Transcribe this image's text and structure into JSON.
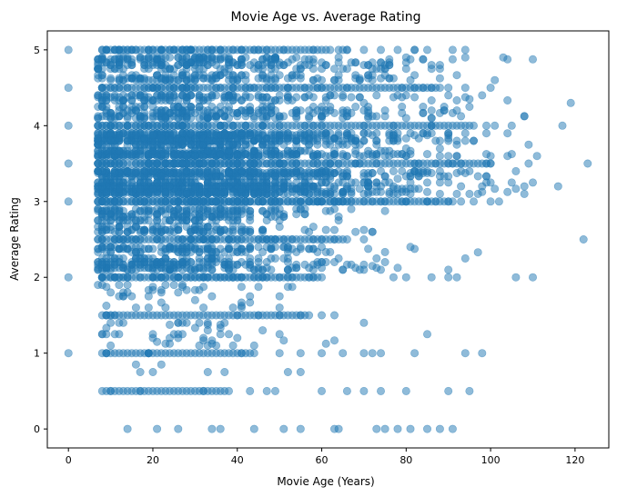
{
  "chart_data": {
    "type": "scatter",
    "title": "Movie Age vs. Average Rating",
    "xlabel": "Movie Age (Years)",
    "ylabel": "Average Rating",
    "xlim": [
      -5,
      128
    ],
    "ylim": [
      -0.25,
      5.25
    ],
    "xticks": [
      0,
      20,
      40,
      60,
      80,
      100,
      120
    ],
    "yticks": [
      0,
      1,
      2,
      3,
      4,
      5
    ],
    "grid": false,
    "legend": "none",
    "marker_color": "#1f77b4",
    "marker_opacity": 0.5,
    "series": [
      {
        "points": [
          [
            0,
            5
          ],
          [
            0,
            4.5
          ],
          [
            0,
            4
          ],
          [
            0,
            3.5
          ],
          [
            0,
            3
          ],
          [
            0,
            2
          ],
          [
            0,
            1
          ],
          [
            117,
            4
          ],
          [
            123,
            3.5
          ],
          [
            122,
            2.5
          ],
          [
            119,
            4.3
          ],
          [
            110,
            2
          ],
          [
            106,
            2
          ],
          [
            109,
            3.5
          ],
          [
            109,
            3.75
          ],
          [
            108,
            3.1
          ],
          [
            104,
            3.6
          ],
          [
            97,
            2.33
          ],
          [
            98,
            1
          ],
          [
            94,
            1
          ],
          [
            90,
            2
          ],
          [
            82,
            1
          ],
          [
            85,
            1.25
          ],
          [
            80,
            2
          ],
          [
            77,
            2
          ],
          [
            86,
            2
          ],
          [
            95,
            0.5
          ],
          [
            90,
            0.5
          ],
          [
            80,
            0.5
          ],
          [
            74,
            0.5
          ],
          [
            70,
            0.5
          ],
          [
            85,
            0
          ],
          [
            81,
            0
          ],
          [
            78,
            0
          ],
          [
            75,
            0
          ],
          [
            73,
            0
          ],
          [
            88,
            0
          ],
          [
            91,
            0
          ],
          [
            14,
            0
          ],
          [
            21,
            0
          ],
          [
            26,
            0
          ],
          [
            34,
            0
          ],
          [
            36,
            0
          ],
          [
            44,
            0
          ],
          [
            51,
            0
          ],
          [
            55,
            0
          ],
          [
            63,
            0
          ],
          [
            64,
            0
          ],
          [
            50,
            1
          ],
          [
            55,
            1
          ],
          [
            60,
            1
          ],
          [
            65,
            1
          ],
          [
            70,
            1
          ],
          [
            72,
            1
          ],
          [
            74,
            1
          ],
          [
            55,
            0.75
          ],
          [
            52,
            0.75
          ],
          [
            47,
            0.5
          ],
          [
            43,
            0.5
          ],
          [
            60,
            0.5
          ],
          [
            66,
            0.5
          ],
          [
            45,
            2
          ],
          [
            52,
            2
          ],
          [
            57,
            2
          ],
          [
            70,
            2.1
          ],
          [
            72,
            2.15
          ],
          [
            70,
            2.5
          ],
          [
            60,
            2.5
          ],
          [
            55,
            2.4
          ],
          [
            100,
            4.5
          ],
          [
            98,
            4.4
          ],
          [
            95,
            4.35
          ],
          [
            94,
            4.5
          ],
          [
            90,
            4.5
          ],
          [
            86,
            4.5
          ],
          [
            82,
            4.5
          ],
          [
            94,
            5
          ],
          [
            91,
            5
          ],
          [
            85,
            5
          ],
          [
            82,
            5
          ],
          [
            78,
            5
          ],
          [
            74,
            5
          ],
          [
            70,
            5
          ],
          [
            66,
            5
          ],
          [
            64,
            5
          ],
          [
            60,
            4.75
          ],
          [
            66,
            4.75
          ],
          [
            72,
            4.75
          ],
          [
            75,
            4.75
          ],
          [
            88,
            4.75
          ],
          [
            81,
            4.6
          ],
          [
            100,
            3.5
          ],
          [
            100,
            3
          ],
          [
            102,
            3
          ],
          [
            96,
            3
          ],
          [
            93,
            3
          ],
          [
            90,
            3.5
          ],
          [
            99,
            4
          ],
          [
            101,
            4
          ],
          [
            92,
            3.6
          ],
          [
            96,
            3.8
          ],
          [
            88,
            3.7
          ],
          [
            85,
            3.25
          ],
          [
            88,
            3.4
          ],
          [
            82,
            3.4
          ],
          [
            78,
            3.3
          ],
          [
            65,
            3
          ],
          [
            70,
            3
          ],
          [
            75,
            3
          ],
          [
            80,
            3
          ],
          [
            85,
            3
          ],
          [
            62,
            3.3
          ],
          [
            58,
            3.6
          ],
          [
            55,
            3.9
          ],
          [
            60,
            4.2
          ],
          [
            65,
            4.1
          ],
          [
            70,
            4.3
          ],
          [
            75,
            4.2
          ],
          [
            80,
            4.1
          ],
          [
            68,
            3.8
          ],
          [
            72,
            3.6
          ],
          [
            76,
            3.9
          ],
          [
            80,
            3.7
          ],
          [
            84,
            3.9
          ],
          [
            86,
            4
          ],
          [
            90,
            3.9
          ],
          [
            92,
            4.2
          ],
          [
            104,
            3.9
          ],
          [
            50,
            2.75
          ],
          [
            48,
            2.8
          ],
          [
            46,
            3.2
          ],
          [
            52,
            3.1
          ],
          [
            54,
            3.4
          ],
          [
            56,
            2.9
          ],
          [
            58,
            3.2
          ],
          [
            63,
            2.5
          ],
          [
            64,
            2.75
          ],
          [
            68,
            2.6
          ],
          [
            43,
            2.25
          ],
          [
            41,
            1.6
          ],
          [
            38,
            1.25
          ],
          [
            36,
            1.25
          ],
          [
            33,
            1.3
          ],
          [
            31,
            1.4
          ],
          [
            28,
            1.4
          ],
          [
            24,
            1.2
          ],
          [
            21,
            1.15
          ],
          [
            20,
            0.75
          ],
          [
            17,
            0.75
          ],
          [
            16,
            0.85
          ],
          [
            22,
            0.85
          ],
          [
            33,
            0.75
          ],
          [
            37,
            0.75
          ],
          [
            39,
            1.1
          ],
          [
            44,
            1.1
          ],
          [
            46,
            1.3
          ],
          [
            30,
            1.7
          ],
          [
            26,
            1.8
          ],
          [
            22,
            1.8
          ],
          [
            16,
            1.6
          ],
          [
            12,
            1.75
          ],
          [
            10,
            1.8
          ],
          [
            15,
            2.2
          ],
          [
            12,
            4.8
          ],
          [
            15,
            4.8
          ],
          [
            22,
            4.8
          ],
          [
            27,
            4.7
          ],
          [
            33,
            4.8
          ],
          [
            37,
            4.7
          ],
          [
            45,
            4.75
          ],
          [
            48,
            4.6
          ],
          [
            52,
            4.5
          ],
          [
            56,
            4.5
          ],
          [
            42,
            4.6
          ],
          [
            29,
            4.6
          ],
          [
            18,
            4.6
          ],
          [
            11,
            4.5
          ],
          [
            11,
            1.5
          ],
          [
            40,
            1.5
          ],
          [
            45,
            1.5
          ],
          [
            50,
            1.5
          ],
          [
            55,
            1.5
          ],
          [
            60,
            1.5
          ],
          [
            63,
            1.5
          ],
          [
            8,
            4
          ],
          [
            8,
            3.5
          ],
          [
            8,
            3
          ],
          [
            8,
            2.5
          ],
          [
            8,
            2
          ],
          [
            8,
            2.75
          ],
          [
            8,
            3.25
          ],
          [
            8,
            3.75
          ]
        ],
        "dense_bands": [
          {
            "y": 5,
            "x_from": 8,
            "x_to": 62
          },
          {
            "y": 4.5,
            "x_from": 8,
            "x_to": 88
          },
          {
            "y": 4,
            "x_from": 7,
            "x_to": 96
          },
          {
            "y": 3.5,
            "x_from": 7,
            "x_to": 100
          },
          {
            "y": 3,
            "x_from": 7,
            "x_to": 91
          },
          {
            "y": 2.5,
            "x_from": 7,
            "x_to": 66
          },
          {
            "y": 2,
            "x_from": 8,
            "x_to": 60
          },
          {
            "y": 1.5,
            "x_from": 8,
            "x_to": 57
          },
          {
            "y": 1,
            "x_from": 8,
            "x_to": 44
          },
          {
            "y": 0.5,
            "x_from": 8,
            "x_to": 38
          }
        ],
        "dense_clusters": [
          {
            "x_center": 25,
            "x_spread": 14,
            "y_center": 3.4,
            "y_spread": 0.75,
            "count": 2600
          },
          {
            "x_center": 40,
            "x_spread": 18,
            "y_center": 3.6,
            "y_spread": 0.55,
            "count": 900
          },
          {
            "x_center": 58,
            "x_spread": 20,
            "y_center": 3.8,
            "y_spread": 0.45,
            "count": 450
          },
          {
            "x_center": 80,
            "x_spread": 14,
            "y_center": 3.7,
            "y_spread": 0.5,
            "count": 140
          }
        ]
      }
    ]
  }
}
